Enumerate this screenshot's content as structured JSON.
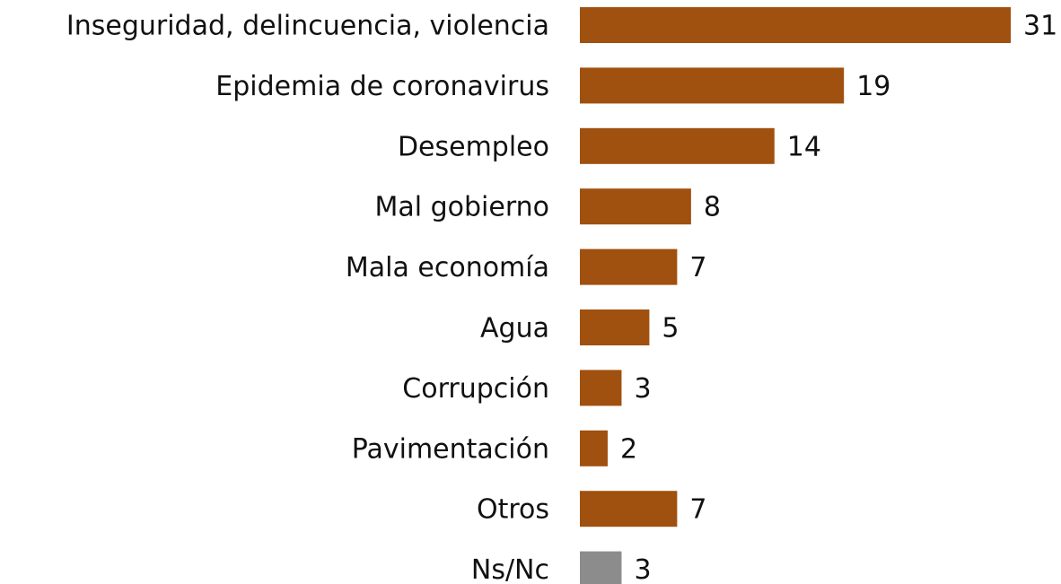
{
  "chart_data": {
    "type": "barh",
    "categories": [
      "Inseguridad, delincuencia, violencia",
      "Epidemia de coronavirus",
      "Desempleo",
      "Mal gobierno",
      "Mala economía",
      "Agua",
      "Corrupción",
      "Pavimentación",
      "Otros",
      "Ns/Nc"
    ],
    "values": [
      31,
      19,
      14,
      8,
      7,
      5,
      3,
      2,
      7,
      3
    ],
    "colors": [
      "#a0500f",
      "#a0500f",
      "#a0500f",
      "#a0500f",
      "#a0500f",
      "#a0500f",
      "#a0500f",
      "#a0500f",
      "#a0500f",
      "#8c8c8c"
    ]
  }
}
